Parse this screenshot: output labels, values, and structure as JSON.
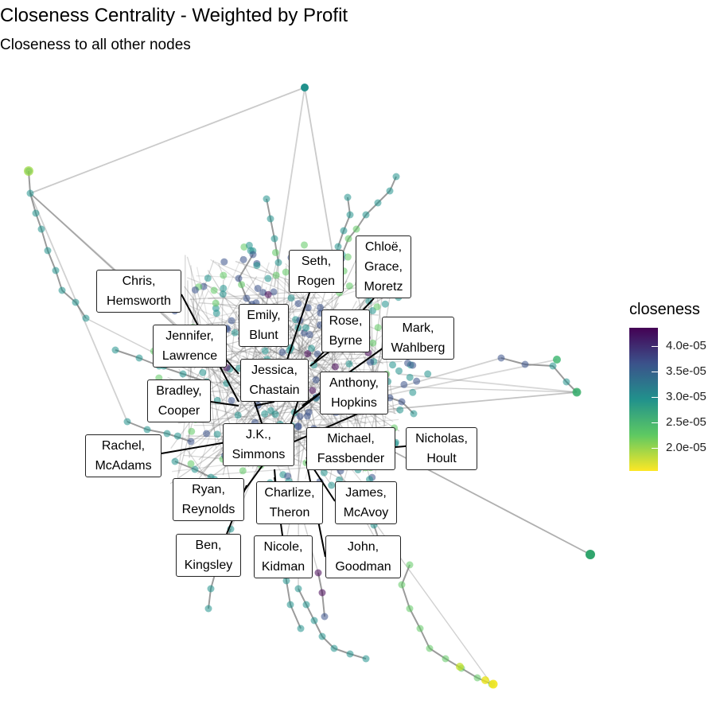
{
  "title": "Closeness Centrality - Weighted by Profit",
  "subtitle": "Closeness to all other nodes",
  "legend": {
    "title": "closeness",
    "ticks": [
      "4.0e-05",
      "3.5e-05",
      "3.0e-05",
      "2.5e-05",
      "2.0e-05"
    ],
    "colors": [
      "#440154",
      "#3b528b",
      "#21918c",
      "#5ec962",
      "#fde725"
    ]
  },
  "labels": [
    {
      "id": "seth",
      "text": "Seth,\nRogen"
    },
    {
      "id": "chloe",
      "text": "Chloë,\nGrace,\nMoretz"
    },
    {
      "id": "chris",
      "text": "Chris,\nHemsworth"
    },
    {
      "id": "emily",
      "text": "Emily,\nBlunt"
    },
    {
      "id": "rose",
      "text": "Rose,\nByrne"
    },
    {
      "id": "mark",
      "text": "Mark,\nWahlberg"
    },
    {
      "id": "jennifer",
      "text": "Jennifer,\nLawrence"
    },
    {
      "id": "jessica",
      "text": "Jessica,\nChastain"
    },
    {
      "id": "anthony",
      "text": "Anthony,\nHopkins"
    },
    {
      "id": "bradley",
      "text": "Bradley,\nCooper"
    },
    {
      "id": "jk",
      "text": "J.K.,\nSimmons"
    },
    {
      "id": "michael",
      "text": "Michael,\nFassbender"
    },
    {
      "id": "nicholas",
      "text": "Nicholas,\nHoult"
    },
    {
      "id": "rachel",
      "text": "Rachel,\nMcAdams"
    },
    {
      "id": "ryan",
      "text": "Ryan,\nReynolds"
    },
    {
      "id": "charlize",
      "text": "Charlize,\nTheron"
    },
    {
      "id": "james",
      "text": "James,\nMcAvoy"
    },
    {
      "id": "ben",
      "text": "Ben,\nKingsley"
    },
    {
      "id": "nicole",
      "text": "Nicole,\nKidman"
    },
    {
      "id": "john",
      "text": "John,\nGoodman"
    }
  ]
}
